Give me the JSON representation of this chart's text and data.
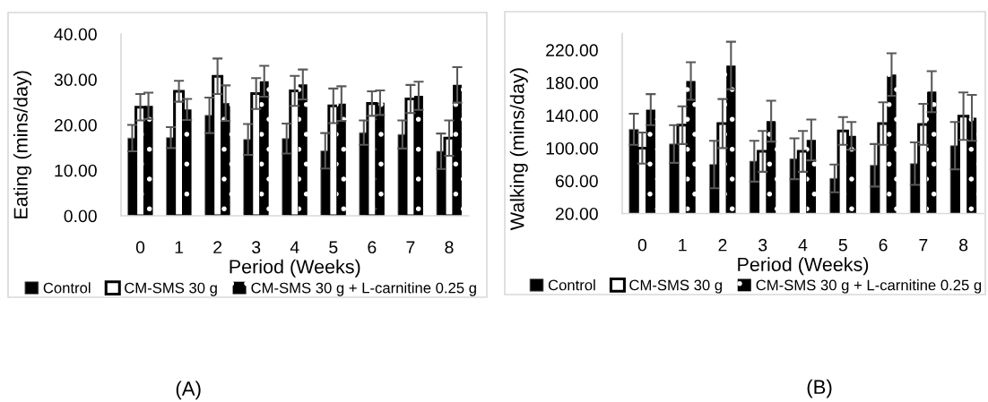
{
  "chart_data": [
    {
      "type": "bar",
      "categories": [
        "0",
        "1",
        "2",
        "3",
        "4",
        "5",
        "6",
        "7",
        "8"
      ],
      "xlabel": "Period (Weeks)",
      "ylabel": "Eating (mins/day)",
      "ylim": [
        0,
        40
      ],
      "yticks": [
        {
          "value": 0,
          "label": "0.00"
        },
        {
          "value": 10,
          "label": "10.00"
        },
        {
          "value": 20,
          "label": "20.00"
        },
        {
          "value": 30,
          "label": "30.00"
        },
        {
          "value": 40,
          "label": "40.00"
        }
      ],
      "legend": "bottom",
      "annotations": [
        "(A)"
      ],
      "series": [
        {
          "name": "Control",
          "color": "#000000",
          "values": [
            17.1,
            17.2,
            22.1,
            16.8,
            17.0,
            14.3,
            18.3,
            17.9,
            14.2
          ],
          "errors": [
            2.9,
            2.3,
            3.9,
            3.4,
            3.3,
            3.9,
            2.7,
            3.1,
            3.9
          ]
        },
        {
          "name": "CM-SMS 30 g",
          "color": "#ffffff",
          "values": [
            23.9,
            27.4,
            30.7,
            26.9,
            27.5,
            24.2,
            24.7,
            25.7,
            17.1
          ],
          "errors": [
            2.9,
            2.3,
            3.9,
            3.4,
            3.3,
            3.8,
            2.7,
            3.1,
            3.9
          ]
        },
        {
          "name": "CM-SMS 30 g + L-carnitine 0.25 g",
          "color": "#000000",
          "values": [
            24.2,
            23.4,
            24.8,
            29.6,
            28.9,
            24.7,
            24.9,
            26.4,
            28.8
          ],
          "errors": [
            2.9,
            2.3,
            3.9,
            3.4,
            3.3,
            3.8,
            2.7,
            3.1,
            3.9
          ]
        }
      ]
    },
    {
      "type": "bar",
      "categories": [
        "0",
        "1",
        "2",
        "3",
        "4",
        "5",
        "6",
        "7",
        "8"
      ],
      "xlabel": "Period (Weeks)",
      "ylabel": "Walking (mins/day)",
      "ylim": [
        20,
        240
      ],
      "yticks": [
        {
          "value": 20,
          "label": "20.00"
        },
        {
          "value": 60,
          "label": "60.00"
        },
        {
          "value": 100,
          "label": "100.00"
        },
        {
          "value": 140,
          "label": "140.00"
        },
        {
          "value": 180,
          "label": "180.00"
        },
        {
          "value": 220,
          "label": "220.00"
        }
      ],
      "legend": "bottom",
      "annotations": [
        "(B)"
      ],
      "series": [
        {
          "name": "Control",
          "color": "#000000",
          "values": [
            123,
            105,
            80,
            84,
            87,
            63,
            79,
            81,
            103
          ],
          "errors": [
            19,
            23,
            29,
            25,
            25,
            17,
            26,
            26,
            29
          ]
        },
        {
          "name": "CM-SMS 30 g",
          "color": "#ffffff",
          "values": [
            100,
            128,
            130,
            96,
            96,
            121,
            130,
            129,
            139
          ],
          "errors": [
            19,
            23,
            30,
            25,
            25,
            17,
            26,
            25,
            29
          ]
        },
        {
          "name": "CM-SMS 30 g + L-carnitine 0.25 g",
          "color": "#000000",
          "values": [
            147,
            182,
            201,
            133,
            110,
            115,
            190,
            169,
            137
          ],
          "errors": [
            19,
            23,
            29,
            25,
            25,
            17,
            26,
            25,
            28
          ]
        }
      ]
    }
  ]
}
